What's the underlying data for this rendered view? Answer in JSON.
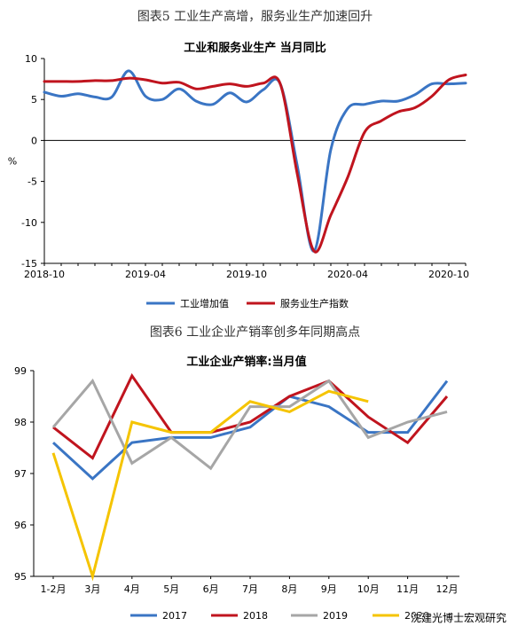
{
  "figure1": {
    "caption": "图表5 工业生产高增，服务业生产加速回升",
    "chart_data": {
      "type": "line",
      "title": "工业和服务业生产 当月同比",
      "ylabel": "%",
      "ylim": [
        -15,
        10
      ],
      "yticks": [
        10,
        5,
        0,
        -5,
        -10,
        -15
      ],
      "x_tick_labels": [
        "2018-10",
        "2019-04",
        "2019-10",
        "2020-04",
        "2020-10"
      ],
      "x": [
        "2018-10",
        "2018-11",
        "2018-12",
        "2019-01",
        "2019-02",
        "2019-03",
        "2019-04",
        "2019-05",
        "2019-06",
        "2019-07",
        "2019-08",
        "2019-09",
        "2019-10",
        "2019-11",
        "2019-12",
        "2020-01",
        "2020-02",
        "2020-03",
        "2020-04",
        "2020-05",
        "2020-06",
        "2020-07",
        "2020-08",
        "2020-09",
        "2020-10",
        "2020-11"
      ],
      "series": [
        {
          "name": "工业增加值",
          "color": "#3a75c4",
          "values": [
            5.9,
            5.4,
            5.7,
            5.3,
            5.3,
            8.5,
            5.4,
            5.0,
            6.3,
            4.8,
            4.4,
            5.8,
            4.7,
            6.2,
            6.9,
            -3.0,
            -13.5,
            -1.1,
            3.9,
            4.4,
            4.8,
            4.8,
            5.6,
            6.9,
            6.9,
            7.0
          ]
        },
        {
          "name": "服务业生产指数",
          "color": "#c0141e",
          "values": [
            7.2,
            7.2,
            7.2,
            7.3,
            7.3,
            7.6,
            7.4,
            7.0,
            7.1,
            6.3,
            6.6,
            6.9,
            6.6,
            7.0,
            6.9,
            -4.0,
            -13.5,
            -9.1,
            -4.5,
            1.0,
            2.4,
            3.5,
            4.0,
            5.4,
            7.4,
            8.0
          ]
        }
      ]
    }
  },
  "figure2": {
    "caption": "图表6 工业企业产销率创多年同期高点",
    "chart_data": {
      "type": "line",
      "title": "工业企业产销率:当月值",
      "ylim": [
        95,
        99
      ],
      "yticks": [
        99,
        98,
        97,
        96,
        95
      ],
      "categories": [
        "1-2月",
        "3月",
        "4月",
        "5月",
        "6月",
        "7月",
        "8月",
        "9月",
        "10月",
        "11月",
        "12月"
      ],
      "series": [
        {
          "name": "2017",
          "color": "#3a75c4",
          "values": [
            97.6,
            96.9,
            97.6,
            97.7,
            97.7,
            97.9,
            98.5,
            98.3,
            97.8,
            97.8,
            98.8
          ]
        },
        {
          "name": "2018",
          "color": "#c0141e",
          "values": [
            97.9,
            97.3,
            98.9,
            97.8,
            97.8,
            98.0,
            98.5,
            98.8,
            98.1,
            97.6,
            98.5
          ]
        },
        {
          "name": "2019",
          "color": "#a6a6a6",
          "values": [
            97.9,
            98.8,
            97.2,
            97.7,
            97.1,
            98.3,
            98.3,
            98.8,
            97.7,
            98.0,
            98.2
          ]
        },
        {
          "name": "2020",
          "color": "#f5c400",
          "values": [
            97.4,
            95.0,
            98.0,
            97.8,
            97.8,
            98.4,
            98.2,
            98.6,
            98.4,
            null,
            null
          ]
        }
      ]
    }
  },
  "watermark": "沈建光博士宏观研究"
}
